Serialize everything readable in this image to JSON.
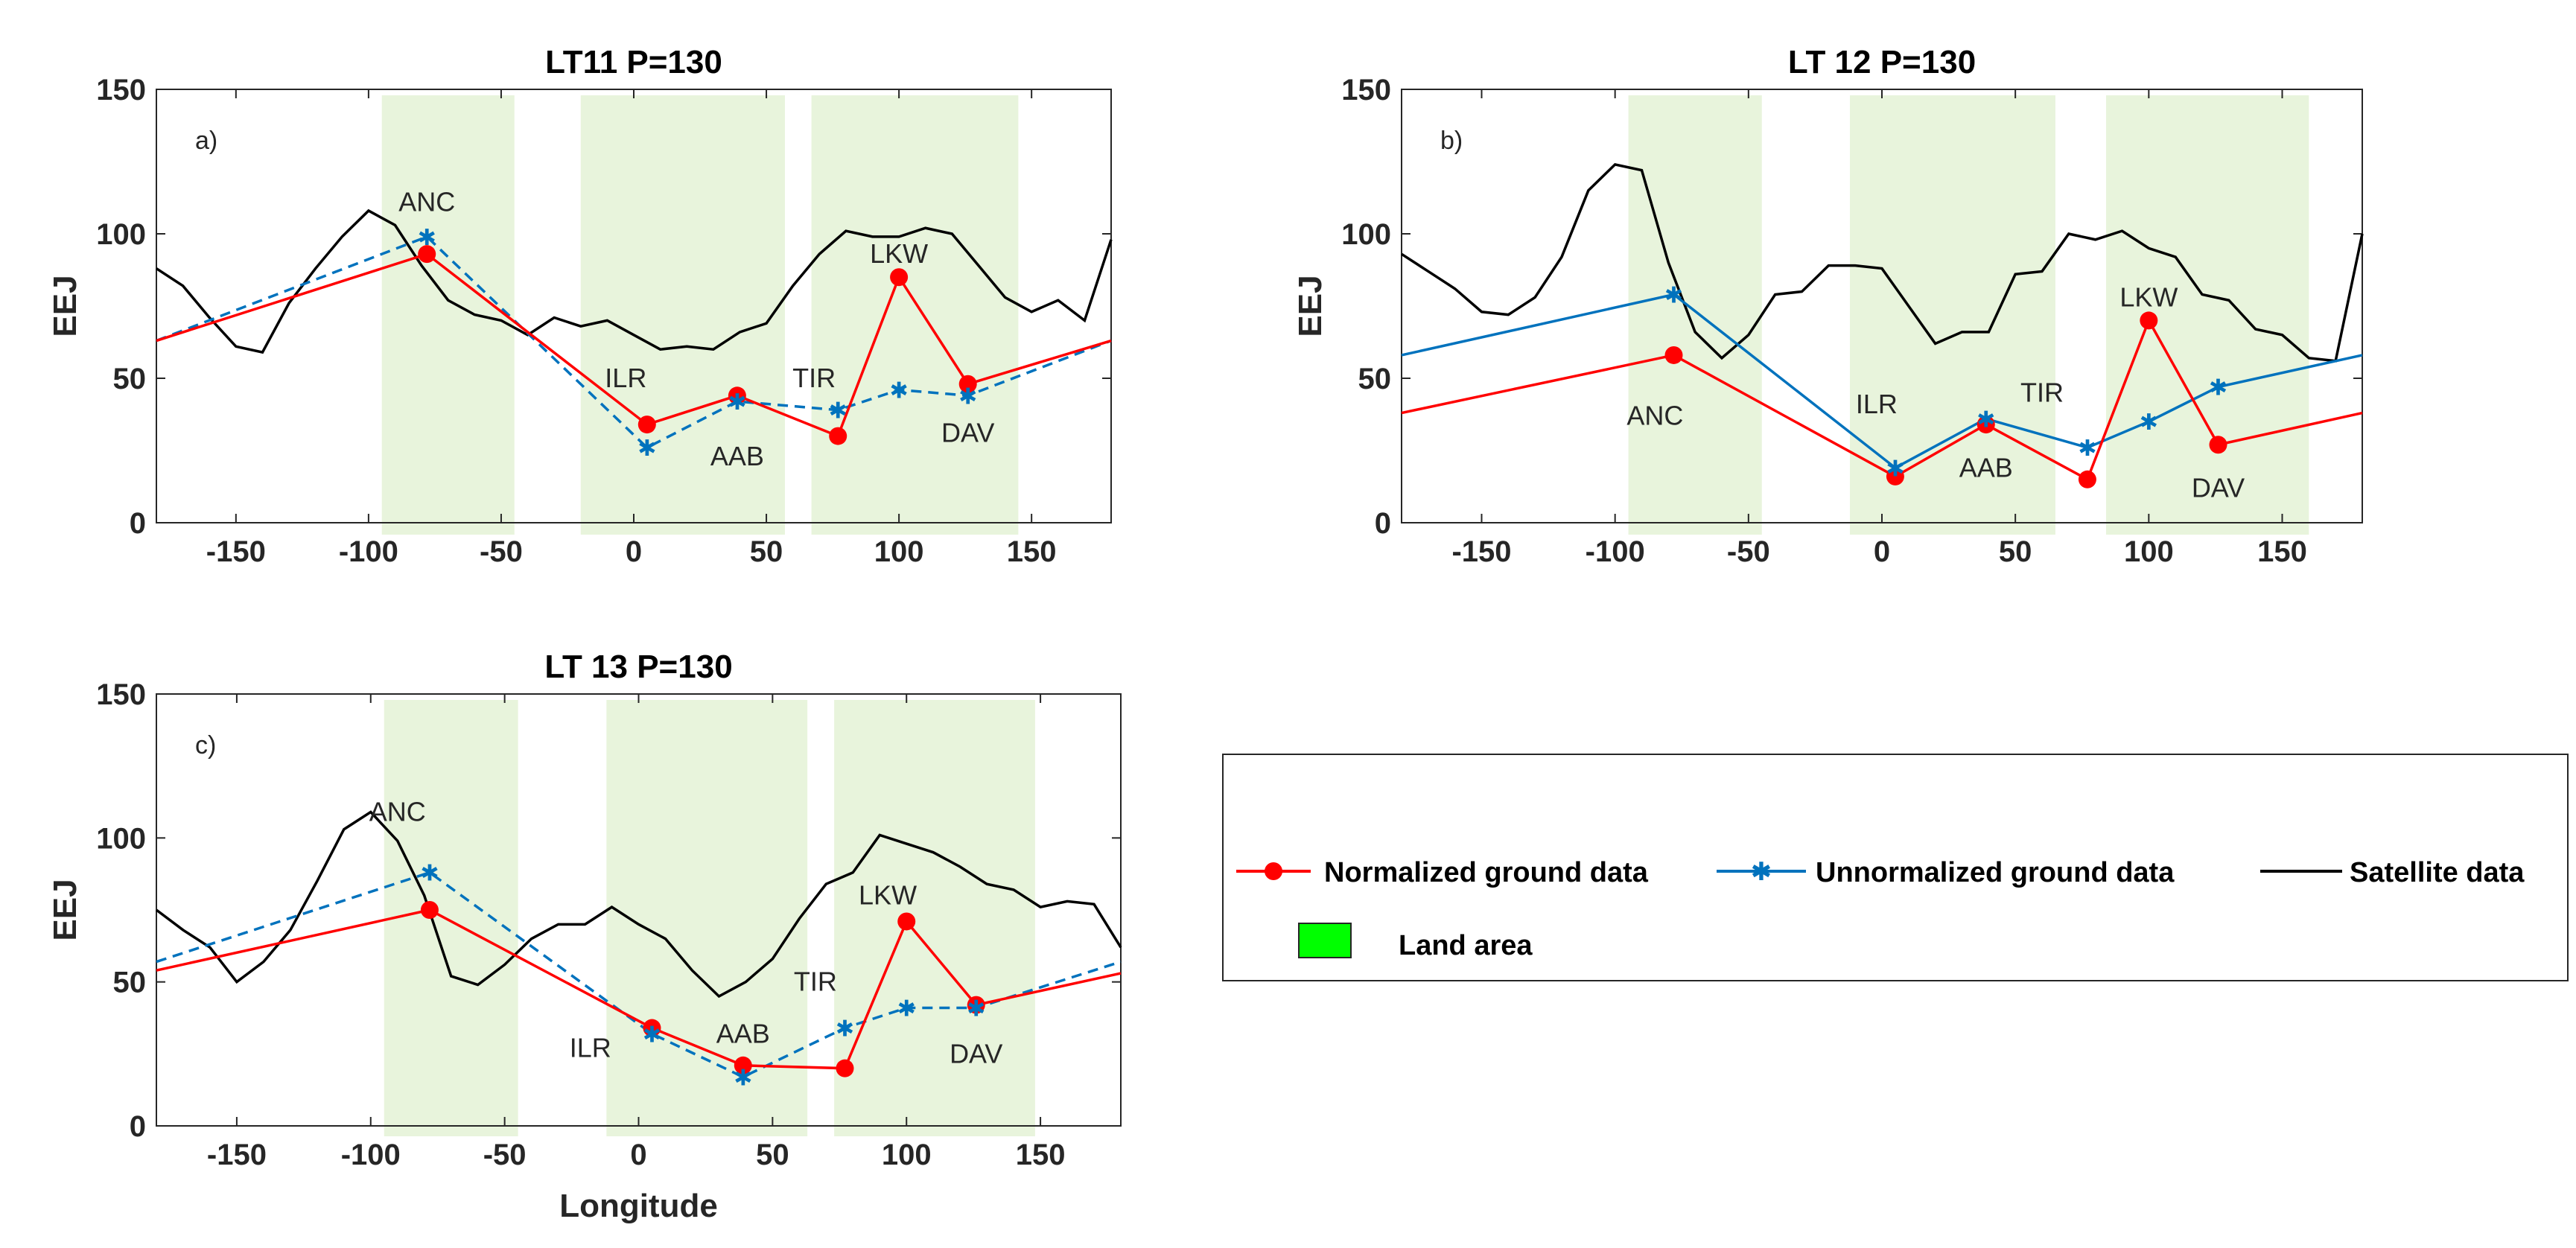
{
  "colors": {
    "normalized": "#ff0000",
    "unnormalized": "#0072bd",
    "satellite": "#000000",
    "land_shade": "#e8f4dc",
    "land_legend": "#00ff00"
  },
  "legend": {
    "normalized": "Normalized ground data",
    "unnormalized": "Unnormalized ground data",
    "satellite": "Satellite data",
    "land": "Land area"
  },
  "chart_data": [
    {
      "type": "line",
      "id": "a",
      "title": "LT11 P=130",
      "panel_label": "a)",
      "xlabel": "",
      "ylabel": "EEJ",
      "xlim": [
        -180,
        180
      ],
      "ylim": [
        0,
        150
      ],
      "xticks": [
        "-150",
        "-100",
        "-50",
        "0",
        "50",
        "100",
        "150"
      ],
      "yticks": [
        "0",
        "50",
        "100",
        "150"
      ],
      "land_areas": [
        [
          -95,
          -45
        ],
        [
          -20,
          57
        ],
        [
          67,
          145
        ]
      ],
      "unnormalized_dashed": true,
      "stations": [
        {
          "name": "ANC",
          "lon": -78,
          "norm": 93,
          "unnorm": 99,
          "label_x": -78,
          "label_y": 111
        },
        {
          "name": "ILR",
          "lon": 5,
          "norm": 34,
          "unnorm": 26,
          "label_x": -3,
          "label_y": 50
        },
        {
          "name": "AAB",
          "lon": 39,
          "norm": 44,
          "unnorm": 42,
          "label_x": 39,
          "label_y": 23
        },
        {
          "name": "TIR",
          "lon": 77,
          "norm": 30,
          "unnorm": 39,
          "label_x": 68,
          "label_y": 50
        },
        {
          "name": "LKW",
          "lon": 100,
          "norm": 85,
          "unnorm": 46,
          "label_x": 100,
          "label_y": 93
        },
        {
          "name": "DAV",
          "lon": 126,
          "norm": 48,
          "unnorm": 44,
          "label_x": 126,
          "label_y": 31
        }
      ],
      "ends": {
        "left_norm": 63,
        "left_unnorm": 63,
        "right_norm": 63,
        "right_unnorm": 63
      },
      "satellite": {
        "x": [
          -180,
          -170,
          -160,
          -150,
          -140,
          -130,
          -120,
          -110,
          -100,
          -90,
          -80,
          -70,
          -60,
          -50,
          -40,
          -30,
          -20,
          -10,
          0,
          10,
          20,
          30,
          40,
          50,
          60,
          70,
          80,
          90,
          100,
          110,
          120,
          130,
          140,
          150,
          160,
          170,
          180
        ],
        "y": [
          88,
          82,
          71,
          61,
          59,
          76,
          88,
          99,
          108,
          103,
          89,
          77,
          72,
          70,
          65,
          71,
          68,
          70,
          65,
          60,
          61,
          60,
          66,
          69,
          82,
          93,
          101,
          99,
          99,
          102,
          100,
          89,
          78,
          73,
          77,
          70,
          98
        ]
      }
    },
    {
      "type": "line",
      "id": "b",
      "title": "LT 12 P=130",
      "panel_label": "b)",
      "xlabel": "",
      "ylabel": "EEJ",
      "xlim": [
        -180,
        180
      ],
      "ylim": [
        0,
        150
      ],
      "xticks": [
        "-150",
        "-100",
        "-50",
        "0",
        "50",
        "100",
        "150"
      ],
      "yticks": [
        "0",
        "50",
        "100",
        "150"
      ],
      "land_areas": [
        [
          -95,
          -45
        ],
        [
          -12,
          65
        ],
        [
          84,
          160
        ]
      ],
      "unnormalized_dashed": false,
      "stations": [
        {
          "name": "ANC",
          "lon": -78,
          "norm": 58,
          "unnorm": 79,
          "label_x": -85,
          "label_y": 37
        },
        {
          "name": "ILR",
          "lon": 5,
          "norm": 16,
          "unnorm": 19,
          "label_x": -2,
          "label_y": 41
        },
        {
          "name": "AAB",
          "lon": 39,
          "norm": 34,
          "unnorm": 36,
          "label_x": 39,
          "label_y": 19
        },
        {
          "name": "TIR",
          "lon": 77,
          "norm": 15,
          "unnorm": 26,
          "label_x": 60,
          "label_y": 45
        },
        {
          "name": "LKW",
          "lon": 100,
          "norm": 70,
          "unnorm": 35,
          "label_x": 100,
          "label_y": 78
        },
        {
          "name": "DAV",
          "lon": 126,
          "norm": 27,
          "unnorm": 47,
          "label_x": 126,
          "label_y": 12
        }
      ],
      "ends": {
        "left_norm": 38,
        "left_unnorm": 58,
        "right_norm": 38,
        "right_unnorm": 58
      },
      "satellite": {
        "x": [
          -180,
          -170,
          -160,
          -150,
          -140,
          -130,
          -120,
          -110,
          -100,
          -90,
          -80,
          -70,
          -60,
          -50,
          -40,
          -30,
          -20,
          -10,
          0,
          10,
          20,
          30,
          40,
          50,
          60,
          70,
          80,
          90,
          100,
          110,
          120,
          130,
          140,
          150,
          160,
          170,
          180
        ],
        "y": [
          93,
          87,
          81,
          73,
          72,
          78,
          92,
          115,
          124,
          122,
          90,
          66,
          57,
          65,
          79,
          80,
          89,
          89,
          88,
          75,
          62,
          66,
          66,
          86,
          87,
          100,
          98,
          101,
          95,
          92,
          79,
          77,
          67,
          65,
          57,
          56,
          100
        ]
      }
    },
    {
      "type": "line",
      "id": "c",
      "title": "LT 13 P=130",
      "panel_label": "c)",
      "xlabel": "Longitude",
      "ylabel": "EEJ",
      "xlim": [
        -180,
        180
      ],
      "ylim": [
        0,
        150
      ],
      "xticks": [
        "-150",
        "-100",
        "-50",
        "0",
        "50",
        "100",
        "150"
      ],
      "yticks": [
        "0",
        "50",
        "100",
        "150"
      ],
      "land_areas": [
        [
          -95,
          -45
        ],
        [
          -12,
          63
        ],
        [
          73,
          148
        ]
      ],
      "unnormalized_dashed": true,
      "stations": [
        {
          "name": "ANC",
          "lon": -78,
          "norm": 75,
          "unnorm": 88,
          "label_x": -90,
          "label_y": 109
        },
        {
          "name": "ILR",
          "lon": 5,
          "norm": 34,
          "unnorm": 32,
          "label_x": -18,
          "label_y": 27
        },
        {
          "name": "AAB",
          "lon": 39,
          "norm": 21,
          "unnorm": 17,
          "label_x": 39,
          "label_y": 32
        },
        {
          "name": "TIR",
          "lon": 77,
          "norm": 20,
          "unnorm": 34,
          "label_x": 66,
          "label_y": 50
        },
        {
          "name": "LKW",
          "lon": 100,
          "norm": 71,
          "unnorm": 41,
          "label_x": 93,
          "label_y": 80
        },
        {
          "name": "DAV",
          "lon": 126,
          "norm": 42,
          "unnorm": 41,
          "label_x": 126,
          "label_y": 25
        }
      ],
      "ends": {
        "left_norm": 54,
        "left_unnorm": 57,
        "right_norm": 53,
        "right_unnorm": 57
      },
      "satellite": {
        "x": [
          -180,
          -170,
          -160,
          -150,
          -140,
          -130,
          -120,
          -110,
          -100,
          -90,
          -80,
          -70,
          -60,
          -50,
          -40,
          -30,
          -20,
          -10,
          0,
          10,
          20,
          30,
          40,
          50,
          60,
          70,
          80,
          90,
          100,
          110,
          120,
          130,
          140,
          150,
          160,
          170,
          180
        ],
        "y": [
          75,
          68,
          62,
          50,
          57,
          68,
          85,
          103,
          109,
          99,
          80,
          52,
          49,
          56,
          65,
          70,
          70,
          76,
          70,
          65,
          54,
          45,
          50,
          58,
          72,
          84,
          88,
          101,
          98,
          95,
          90,
          84,
          82,
          76,
          78,
          77,
          62
        ]
      }
    }
  ]
}
